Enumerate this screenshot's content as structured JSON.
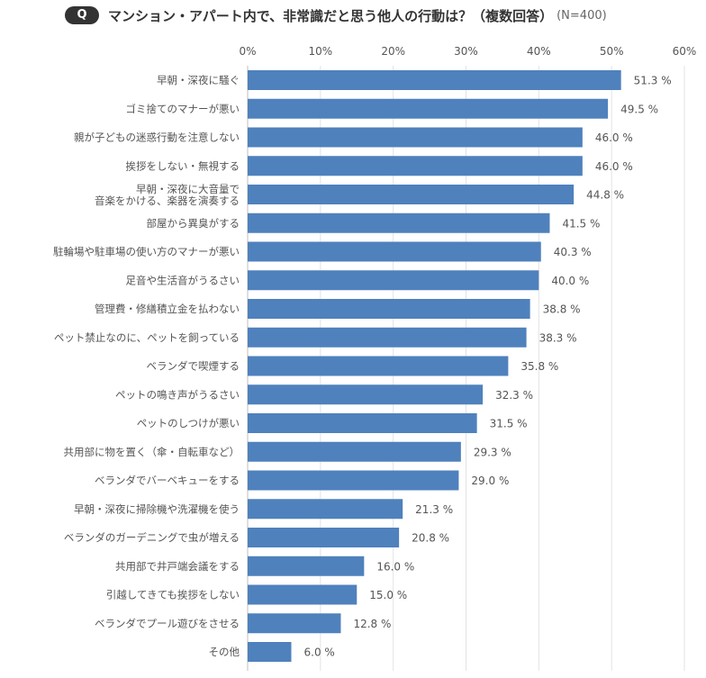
{
  "header": {
    "badge": "Q",
    "title": "マンション・アパート内で、非常識だと思う他人の行動は？（複数回答）",
    "sample": "(N=400)"
  },
  "colors": {
    "bar": "#4f81bd",
    "grid": "#e3e3e3",
    "axis": "#bfbfbf",
    "text": "#555555"
  },
  "chart_data": {
    "type": "bar",
    "orientation": "horizontal",
    "title": "マンション・アパート内で、非常識だと思う他人の行動は？（複数回答）",
    "sample": "(N=400)",
    "xlim": [
      0,
      60
    ],
    "xticks": [
      "0%",
      "10%",
      "20%",
      "30%",
      "40%",
      "50%",
      "60%"
    ],
    "xtick_values": [
      0,
      10,
      20,
      30,
      40,
      50,
      60
    ],
    "grid": true,
    "categories": [
      "早朝・深夜に騒ぐ",
      "ゴミ捨てのマナーが悪い",
      "親が子どもの迷惑行動を注意しない",
      "挨拶をしない・無視する",
      "早朝・深夜に大音量で\n音楽をかける、楽器を演奏する",
      "部屋から異臭がする",
      "駐輪場や駐車場の使い方のマナーが悪い",
      "足音や生活音がうるさい",
      "管理費・修繕積立金を払わない",
      "ペット禁止なのに、ペットを飼っている",
      "ベランダで喫煙する",
      "ペットの鳴き声がうるさい",
      "ペットのしつけが悪い",
      "共用部に物を置く（傘・自転車など）",
      "ベランダでバーベキューをする",
      "早朝・深夜に掃除機や洗濯機を使う",
      "ベランダのガーデニングで虫が増える",
      "共用部で井戸端会議をする",
      "引越してきても挨拶をしない",
      "ベランダでプール遊びをさせる",
      "その他"
    ],
    "values": [
      51.3,
      49.5,
      46.0,
      46.0,
      44.8,
      41.5,
      40.3,
      40.0,
      38.8,
      38.3,
      35.8,
      32.3,
      31.5,
      29.3,
      29.0,
      21.3,
      20.8,
      16.0,
      15.0,
      12.8,
      6.0
    ],
    "value_labels": [
      "51.3 %",
      "49.5 %",
      "46.0 %",
      "46.0 %",
      "44.8 %",
      "41.5 %",
      "40.3 %",
      "40.0 %",
      "38.8 %",
      "38.3 %",
      "35.8 %",
      "32.3 %",
      "31.5 %",
      "29.3 %",
      "29.0 %",
      "21.3 %",
      "20.8 %",
      "16.0 %",
      "15.0 %",
      "12.8 %",
      "6.0 %"
    ]
  }
}
